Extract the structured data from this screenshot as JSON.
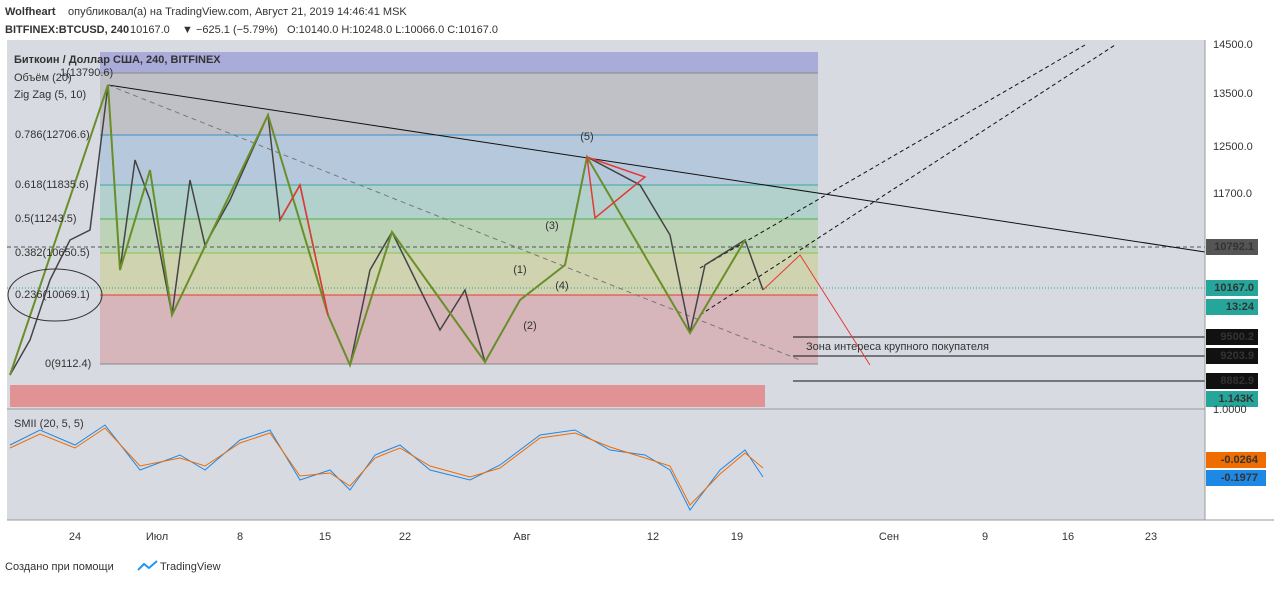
{
  "header": {
    "author": "Wolfheart",
    "published": "опубликовал(а) на TradingView.com, Август 21, 2019 14:46:41 MSK",
    "symbol": "BITFINEX:BTCUSD, 240",
    "last": "10167.0",
    "change": "▼ −625.1 (−5.79%)",
    "ohlc": "O:10140.0 H:10248.0 L:10066.0 C:10167.0"
  },
  "legend": {
    "title": "Биткоин / Доллар США, 240, BITFINEX",
    "volume": "Объём (20)",
    "zigzag": "Zig Zag (5, 10)",
    "smii": "SMII (20, 5, 5)"
  },
  "fib_levels": [
    "1(13790.6)",
    "0.786(12706.6)",
    "0.618(11835.6)",
    "0.5(11243.5)",
    "0.382(10650.5)",
    "0.236(10069.1)",
    "0(9112.4)"
  ],
  "waves": [
    "(5)",
    "(3)",
    "(1)",
    "(4)",
    "(2)"
  ],
  "annotation": "Зона интереса крупного покупателя",
  "price_axis": [
    "14500.0",
    "13500.0",
    "12500.0",
    "11700.0"
  ],
  "badges": [
    "10792.1",
    "10167.0",
    "13:24",
    "9500.2",
    "9203.9",
    "8882.9",
    "1.143K"
  ],
  "volume_axis": "1.0000",
  "smii_badges": [
    "-0.0264",
    "-0.1977"
  ],
  "date_axis": [
    "24",
    "Июл",
    "8",
    "15",
    "22",
    "Авг",
    "12",
    "19",
    "Сен",
    "9",
    "16",
    "23"
  ],
  "footer": {
    "text": "Создано при помощи",
    "brand": "TradingView"
  }
}
